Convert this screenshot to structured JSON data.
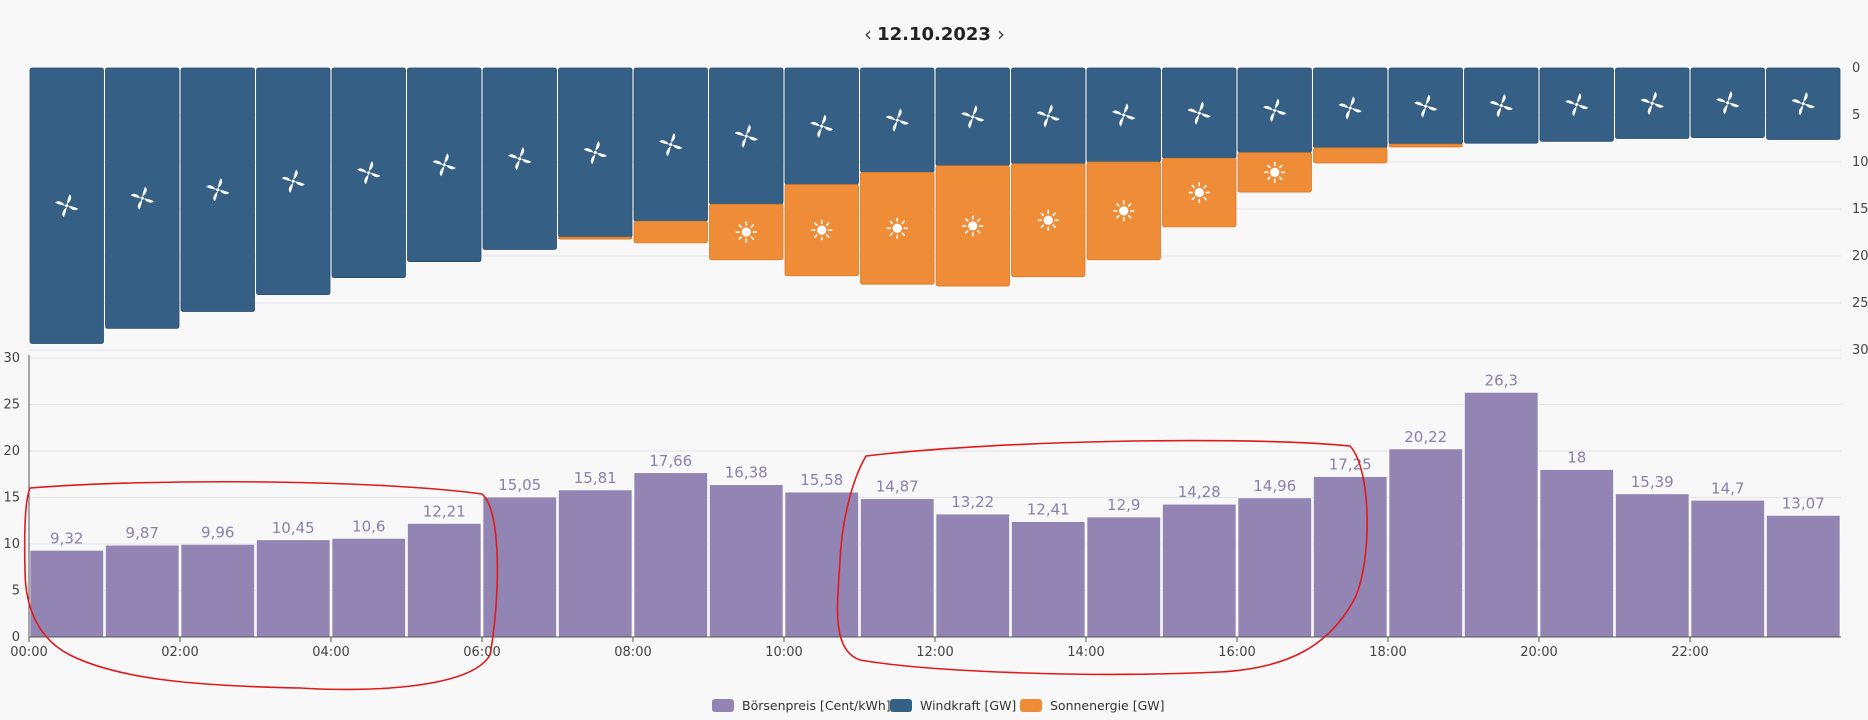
{
  "header": {
    "date": "12.10.2023",
    "prev_icon": "chevron-left-icon",
    "next_icon": "chevron-right-icon",
    "prev_glyph": "‹",
    "next_glyph": "›"
  },
  "colors": {
    "price": "#9385b3",
    "wind": "#355f84",
    "solar": "#ef8c37",
    "grid": "#e3e3e8",
    "annotation": "#e01919"
  },
  "icons": {
    "wind": "wind-turbine-icon",
    "solar": "sun-icon"
  },
  "chart_data": [
    {
      "type": "bar",
      "id": "generation",
      "stacked": true,
      "y_inverted": true,
      "ylim": [
        0,
        30
      ],
      "ytick_labels": [
        "0",
        "5",
        "10",
        "15",
        "20",
        "25",
        "30"
      ],
      "series": [
        {
          "name": "Windkraft [GW]",
          "values": [
            29.3,
            27.7,
            25.9,
            24.1,
            22.3,
            20.6,
            19.3,
            18.0,
            16.3,
            14.5,
            12.4,
            11.1,
            10.4,
            10.2,
            10.0,
            9.6,
            9.0,
            8.5,
            8.1,
            8.0,
            7.8,
            7.5,
            7.4,
            7.6
          ]
        },
        {
          "name": "Sonnenergie [GW]",
          "values": [
            0,
            0,
            0,
            0,
            0,
            0,
            0,
            0.2,
            2.3,
            5.9,
            9.7,
            11.9,
            12.8,
            12.0,
            10.4,
            7.3,
            4.2,
            1.6,
            0.3,
            0,
            0,
            0,
            0,
            0
          ]
        }
      ]
    },
    {
      "type": "bar",
      "id": "price",
      "ylim": [
        0,
        30
      ],
      "ytick_labels": [
        "0",
        "5",
        "10",
        "15",
        "20",
        "25",
        "30"
      ],
      "categories": [
        "00:00",
        "01:00",
        "02:00",
        "03:00",
        "04:00",
        "05:00",
        "06:00",
        "07:00",
        "08:00",
        "09:00",
        "10:00",
        "11:00",
        "12:00",
        "13:00",
        "14:00",
        "15:00",
        "16:00",
        "17:00",
        "18:00",
        "19:00",
        "20:00",
        "21:00",
        "22:00",
        "23:00"
      ],
      "xtick_labels": [
        "00:00",
        "02:00",
        "04:00",
        "06:00",
        "08:00",
        "10:00",
        "12:00",
        "14:00",
        "16:00",
        "18:00",
        "20:00",
        "22:00"
      ],
      "series": [
        {
          "name": "Börsenpreis [Cent/kWh]",
          "values": [
            9.32,
            9.87,
            9.96,
            10.45,
            10.6,
            12.21,
            15.05,
            15.81,
            17.66,
            16.38,
            15.58,
            14.87,
            13.22,
            12.41,
            12.9,
            14.28,
            14.96,
            17.25,
            20.22,
            26.3,
            18,
            15.39,
            14.7,
            13.07
          ]
        }
      ],
      "data_labels": [
        "9,32",
        "9,87",
        "9,96",
        "10,45",
        "10,6",
        "12,21",
        "15,05",
        "15,81",
        "17,66",
        "16,38",
        "15,58",
        "14,87",
        "13,22",
        "12,41",
        "12,9",
        "14,28",
        "14,96",
        "17,25",
        "20,22",
        "26,3",
        "18",
        "15,39",
        "14,7",
        "13,07"
      ]
    }
  ],
  "legend": [
    {
      "label": "Börsenpreis [Cent/kWh]",
      "color_key": "price"
    },
    {
      "label": "Windkraft [GW]",
      "color_key": "wind"
    },
    {
      "label": "Sonnenergie [GW]",
      "color_key": "solar"
    }
  ]
}
